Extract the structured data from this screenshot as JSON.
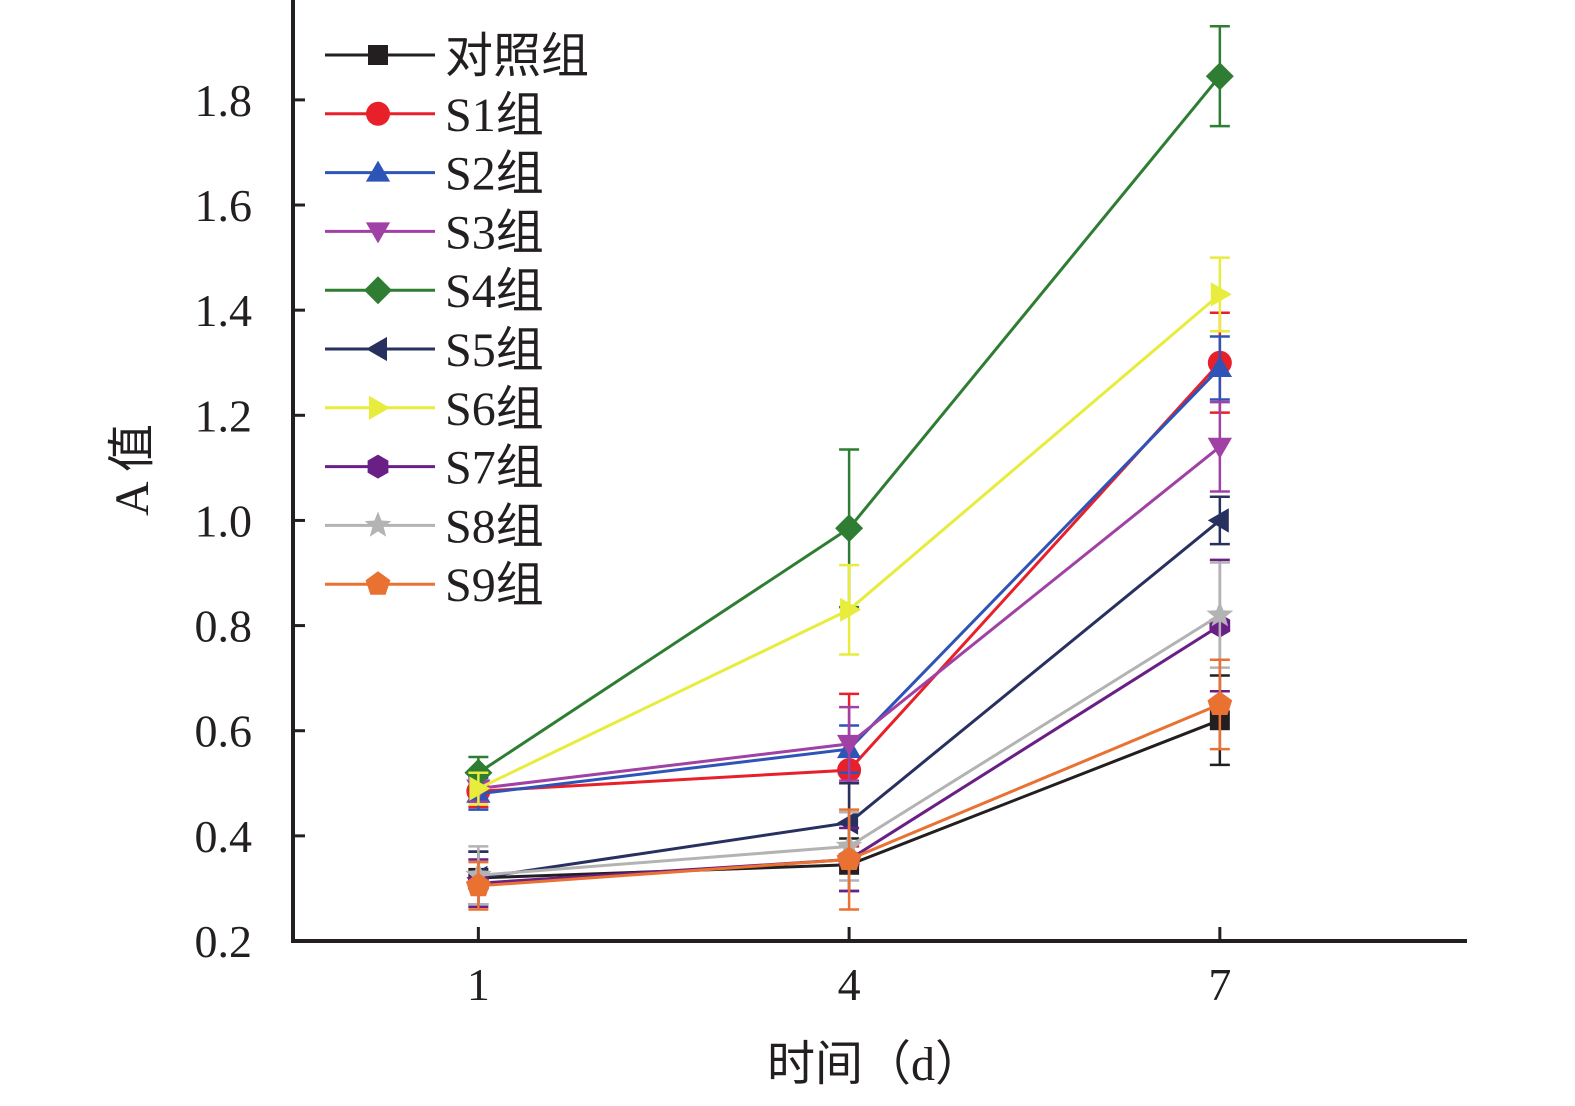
{
  "chart_data": {
    "type": "line",
    "xlabel": "时间（d）",
    "ylabel": "A 值",
    "x": [
      1,
      4,
      7
    ],
    "x_ticks": [
      "1",
      "4",
      "7"
    ],
    "y_ticks": [
      "0.2",
      "0.4",
      "0.6",
      "0.8",
      "1.0",
      "1.2",
      "1.4",
      "1.6",
      "1.8"
    ],
    "xlim": [
      -0.5,
      9.0
    ],
    "ylim": [
      0.2,
      1.99
    ],
    "grid": false,
    "legend_position": "top-left",
    "series": [
      {
        "name": "对照组",
        "color": "#231f20",
        "marker": "square",
        "values": [
          0.32,
          0.345,
          0.62
        ],
        "errors": [
          0.05,
          0.05,
          0.085
        ]
      },
      {
        "name": "S1组",
        "color": "#e8202a",
        "marker": "circle",
        "values": [
          0.485,
          0.525,
          1.3
        ],
        "errors": [
          0.03,
          0.145,
          0.095
        ]
      },
      {
        "name": "S2组",
        "color": "#2e54b7",
        "marker": "triangle-up",
        "values": [
          0.48,
          0.565,
          1.29
        ],
        "errors": [
          0.03,
          0.045,
          0.06
        ]
      },
      {
        "name": "S3组",
        "color": "#a041a5",
        "marker": "triangle-down",
        "values": [
          0.49,
          0.575,
          1.14
        ],
        "errors": [
          0.025,
          0.07,
          0.085
        ]
      },
      {
        "name": "S4组",
        "color": "#2e7d32",
        "marker": "diamond",
        "values": [
          0.52,
          0.985,
          1.845
        ],
        "errors": [
          0.03,
          0.15,
          0.095
        ]
      },
      {
        "name": "S5组",
        "color": "#28305f",
        "marker": "triangle-left",
        "values": [
          0.32,
          0.425,
          1.0
        ],
        "errors": [
          0.05,
          0.075,
          0.045
        ]
      },
      {
        "name": "S6组",
        "color": "#e8ec3c",
        "marker": "triangle-right",
        "values": [
          0.49,
          0.83,
          1.43
        ],
        "errors": [
          0.03,
          0.085,
          0.07
        ]
      },
      {
        "name": "S7组",
        "color": "#6a1f86",
        "marker": "hexagon",
        "values": [
          0.31,
          0.355,
          0.8
        ],
        "errors": [
          0.045,
          0.06,
          0.125
        ]
      },
      {
        "name": "S8组",
        "color": "#b3b3b3",
        "marker": "star",
        "values": [
          0.325,
          0.38,
          0.82
        ],
        "errors": [
          0.055,
          0.065,
          0.1
        ]
      },
      {
        "name": "S9组",
        "color": "#e97132",
        "marker": "pentagon",
        "values": [
          0.305,
          0.355,
          0.65
        ],
        "errors": [
          0.045,
          0.095,
          0.085
        ]
      }
    ]
  }
}
